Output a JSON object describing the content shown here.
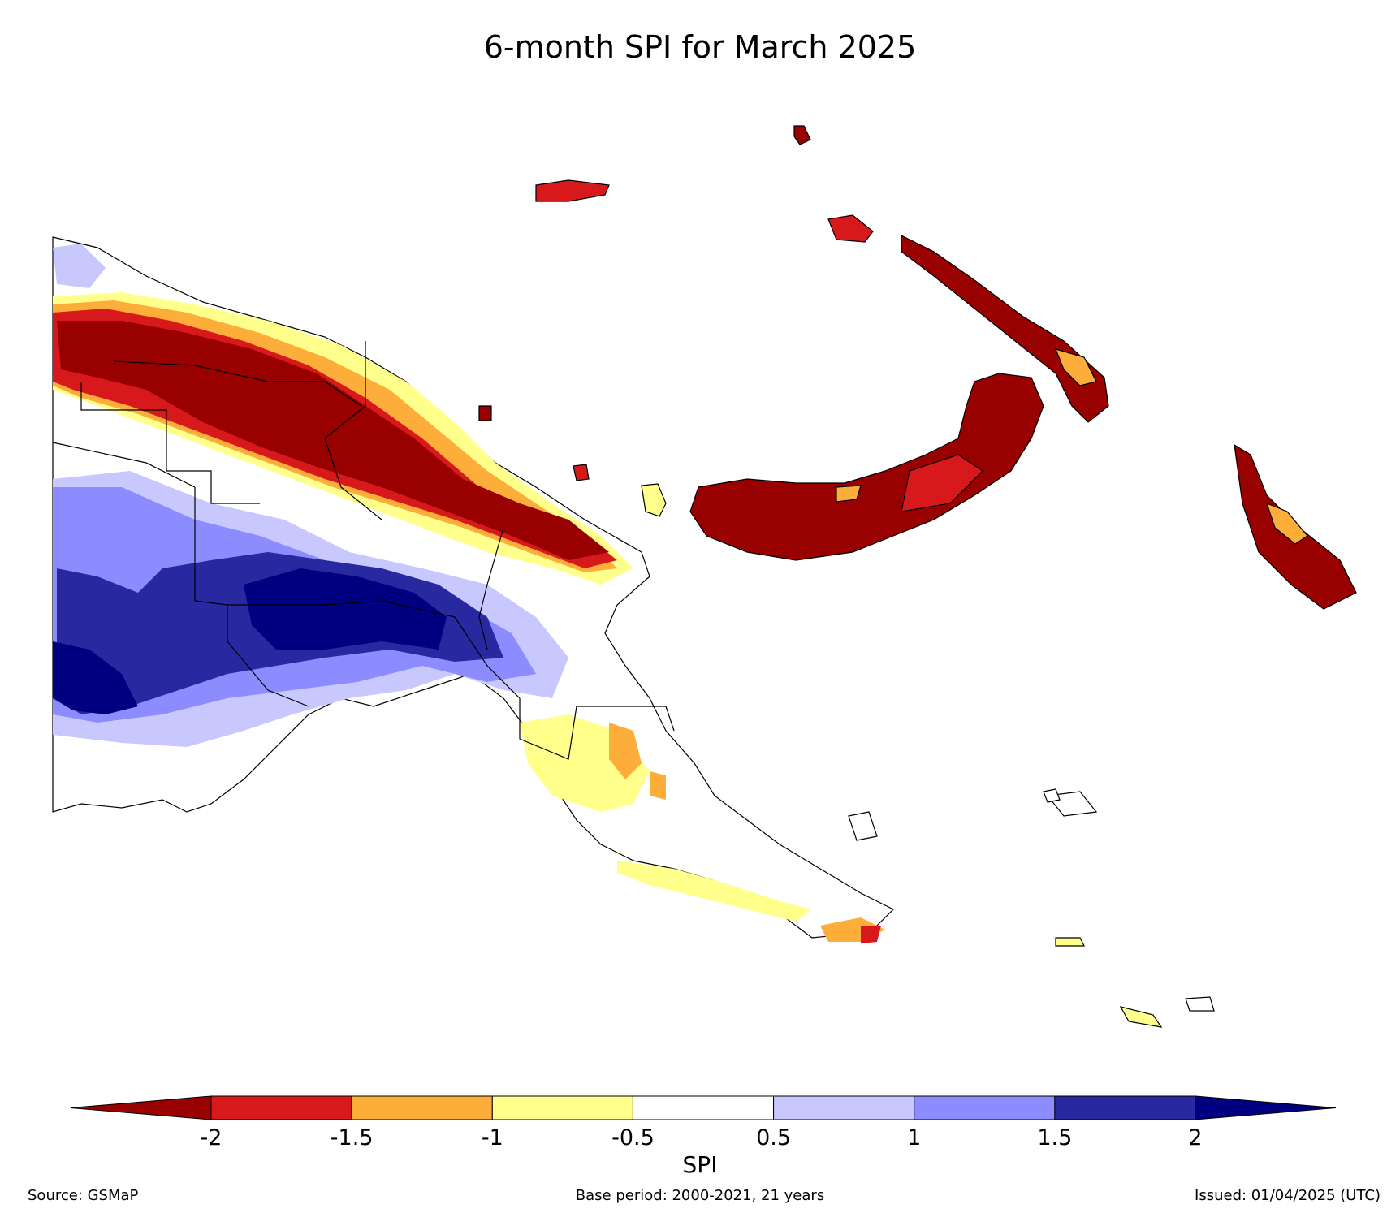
{
  "title": "6-month SPI for March 2025",
  "colorbar": {
    "label": "SPI",
    "ticks": [
      "-2",
      "-1.5",
      "-1",
      "-0.5",
      "0.5",
      "1",
      "1.5",
      "2"
    ],
    "bins": [
      {
        "range": "< -2",
        "color": "#990000"
      },
      {
        "range": "-2 to -1.5",
        "color": "#d7191c"
      },
      {
        "range": "-1.5 to -1",
        "color": "#fdae3a"
      },
      {
        "range": "-1 to -0.5",
        "color": "#ffff8c"
      },
      {
        "range": "-0.5 to 0.5",
        "color": "#ffffff"
      },
      {
        "range": "0.5 to 1",
        "color": "#c8c8ff"
      },
      {
        "range": "1 to 1.5",
        "color": "#8c8cff"
      },
      {
        "range": "1.5 to 2",
        "color": "#2828a0"
      },
      {
        "range": "> 2",
        "color": "#000080"
      }
    ]
  },
  "footer": {
    "source": "Source: GSMaP",
    "base_period": "Base period: 2000-2021, 21 years",
    "issued": "Issued: 01/04/2025 (UTC)"
  }
}
